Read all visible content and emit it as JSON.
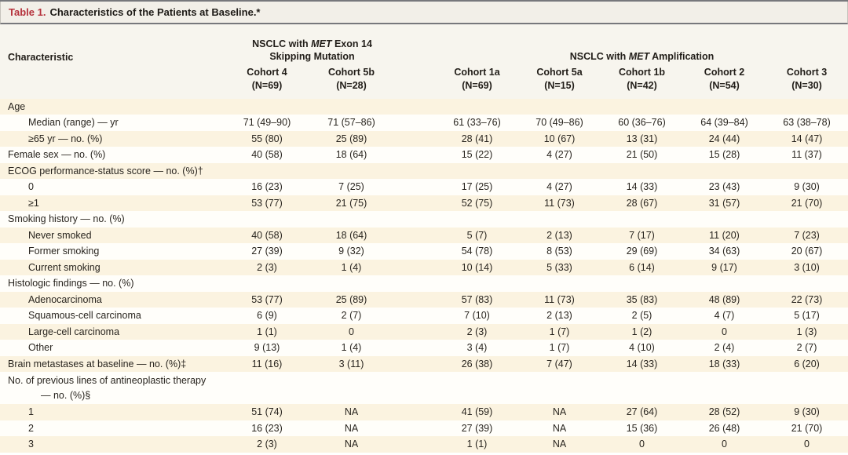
{
  "title": {
    "label": "Table 1.",
    "text": "Characteristics of the Patients at Baseline.*"
  },
  "header": {
    "characteristic": "Characteristic",
    "group_mutation": {
      "line1_pre": "NSCLC with ",
      "gene": "MET",
      "line1_post": " Exon 14",
      "line2": "Skipping Mutation"
    },
    "group_amplification": {
      "pre": "NSCLC with ",
      "gene": "MET",
      "post": " Amplification"
    },
    "cohorts": [
      {
        "name": "Cohort 4",
        "n": "(N=69)"
      },
      {
        "name": "Cohort 5b",
        "n": "(N=28)"
      },
      {
        "name": "Cohort 1a",
        "n": "(N=69)"
      },
      {
        "name": "Cohort 5a",
        "n": "(N=15)"
      },
      {
        "name": "Cohort 1b",
        "n": "(N=42)"
      },
      {
        "name": "Cohort 2",
        "n": "(N=54)"
      },
      {
        "name": "Cohort 3",
        "n": "(N=30)"
      }
    ]
  },
  "rows": [
    {
      "label": "Age",
      "indent": 0,
      "shaded": true,
      "values": [
        "",
        "",
        "",
        "",
        "",
        "",
        ""
      ]
    },
    {
      "label": "Median (range) — yr",
      "indent": 1,
      "shaded": false,
      "values": [
        "71 (49–90)",
        "71 (57–86)",
        "61 (33–76)",
        "70 (49–86)",
        "60 (36–76)",
        "64 (39–84)",
        "63 (38–78)"
      ]
    },
    {
      "label": "≥65 yr — no. (%)",
      "indent": 1,
      "shaded": true,
      "values": [
        "55 (80)",
        "25 (89)",
        "28 (41)",
        "10 (67)",
        "13 (31)",
        "24 (44)",
        "14 (47)"
      ]
    },
    {
      "label": "Female sex — no. (%)",
      "indent": 0,
      "shaded": false,
      "values": [
        "40 (58)",
        "18 (64)",
        "15 (22)",
        "4 (27)",
        "21 (50)",
        "15 (28)",
        "11 (37)"
      ]
    },
    {
      "label": "ECOG performance-status score — no. (%)†",
      "indent": 0,
      "shaded": true,
      "values": [
        "",
        "",
        "",
        "",
        "",
        "",
        ""
      ]
    },
    {
      "label": "0",
      "indent": 1,
      "shaded": false,
      "values": [
        "16 (23)",
        "7 (25)",
        "17 (25)",
        "4 (27)",
        "14 (33)",
        "23 (43)",
        "9 (30)"
      ]
    },
    {
      "label": "≥1",
      "indent": 1,
      "shaded": true,
      "values": [
        "53 (77)",
        "21 (75)",
        "52 (75)",
        "11 (73)",
        "28 (67)",
        "31 (57)",
        "21 (70)"
      ]
    },
    {
      "label": "Smoking history — no. (%)",
      "indent": 0,
      "shaded": false,
      "values": [
        "",
        "",
        "",
        "",
        "",
        "",
        ""
      ]
    },
    {
      "label": "Never smoked",
      "indent": 1,
      "shaded": true,
      "values": [
        "40 (58)",
        "18 (64)",
        "5 (7)",
        "2 (13)",
        "7 (17)",
        "11 (20)",
        "7 (23)"
      ]
    },
    {
      "label": "Former smoking",
      "indent": 1,
      "shaded": false,
      "values": [
        "27 (39)",
        "9 (32)",
        "54 (78)",
        "8 (53)",
        "29 (69)",
        "34 (63)",
        "20 (67)"
      ]
    },
    {
      "label": "Current smoking",
      "indent": 1,
      "shaded": true,
      "values": [
        "2 (3)",
        "1 (4)",
        "10 (14)",
        "5 (33)",
        "6 (14)",
        "9 (17)",
        "3 (10)"
      ]
    },
    {
      "label": "Histologic findings — no. (%)",
      "indent": 0,
      "shaded": false,
      "values": [
        "",
        "",
        "",
        "",
        "",
        "",
        ""
      ]
    },
    {
      "label": "Adenocarcinoma",
      "indent": 1,
      "shaded": true,
      "values": [
        "53 (77)",
        "25 (89)",
        "57 (83)",
        "11 (73)",
        "35 (83)",
        "48 (89)",
        "22 (73)"
      ]
    },
    {
      "label": "Squamous-cell carcinoma",
      "indent": 1,
      "shaded": false,
      "values": [
        "6 (9)",
        "2 (7)",
        "7 (10)",
        "2 (13)",
        "2 (5)",
        "4 (7)",
        "5 (17)"
      ]
    },
    {
      "label": "Large-cell carcinoma",
      "indent": 1,
      "shaded": true,
      "values": [
        "1 (1)",
        "0",
        "2 (3)",
        "1 (7)",
        "1 (2)",
        "0",
        "1 (3)"
      ]
    },
    {
      "label": "Other",
      "indent": 1,
      "shaded": false,
      "values": [
        "9 (13)",
        "1 (4)",
        "3 (4)",
        "1 (7)",
        "4 (10)",
        "2 (4)",
        "2 (7)"
      ]
    },
    {
      "label": "Brain metastases at baseline — no. (%)‡",
      "indent": 0,
      "shaded": true,
      "values": [
        "11 (16)",
        "3 (11)",
        "26 (38)",
        "7 (47)",
        "14 (33)",
        "18 (33)",
        "6 (20)"
      ]
    },
    {
      "label": "No. of previous lines of antineoplastic therapy",
      "label2": "— no. (%)§",
      "indent": 0,
      "shaded": false,
      "values": [
        "",
        "",
        "",
        "",
        "",
        "",
        ""
      ]
    },
    {
      "label": "1",
      "indent": 1,
      "shaded": true,
      "values": [
        "51 (74)",
        "NA",
        "41 (59)",
        "NA",
        "27 (64)",
        "28 (52)",
        "9 (30)"
      ]
    },
    {
      "label": "2",
      "indent": 1,
      "shaded": false,
      "values": [
        "16 (23)",
        "NA",
        "27 (39)",
        "NA",
        "15 (36)",
        "26 (48)",
        "21 (70)"
      ]
    },
    {
      "label": "3",
      "indent": 1,
      "shaded": true,
      "values": [
        "2 (3)",
        "NA",
        "1 (1)",
        "NA",
        "0",
        "0",
        "0"
      ]
    }
  ],
  "colors": {
    "accent_red": "#b5323c",
    "row_band": "#fbf3e0",
    "rule": "#77787c"
  }
}
